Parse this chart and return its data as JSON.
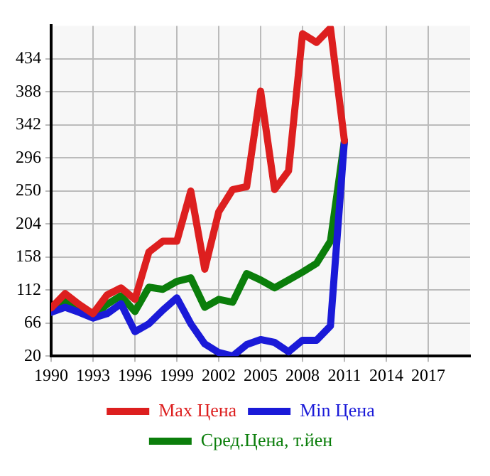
{
  "chart_data": {
    "type": "line",
    "x": [
      1990,
      1991,
      1992,
      1993,
      1994,
      1995,
      1996,
      1997,
      1998,
      1999,
      2000,
      2001,
      2002,
      2003,
      2004,
      2005,
      2006,
      2007,
      2008,
      2009,
      2010,
      2011
    ],
    "series": [
      {
        "name": "Max Цена",
        "color": "#dd1f1f",
        "values": [
          87,
          107,
          92,
          79,
          105,
          115,
          99,
          165,
          180,
          180,
          250,
          141,
          221,
          252,
          256,
          389,
          252,
          278,
          469,
          457,
          477,
          320
        ]
      },
      {
        "name": "Min Цена",
        "color": "#1a1ad8",
        "values": [
          81,
          88,
          81,
          73,
          79,
          93,
          54,
          65,
          84,
          101,
          65,
          37,
          25,
          20,
          36,
          43,
          39,
          26,
          42,
          42,
          62,
          320
        ]
      },
      {
        "name": "Сред.Цена, т.йен",
        "color": "#0b7e0b",
        "values": [
          81,
          96,
          87,
          74,
          92,
          104,
          82,
          116,
          113,
          124,
          129,
          88,
          99,
          95,
          135,
          126,
          115,
          126,
          137,
          149,
          180,
          320
        ]
      }
    ],
    "xlim": [
      1990,
      2020
    ],
    "xticks": [
      1990,
      1993,
      1996,
      1999,
      2002,
      2005,
      2008,
      2011,
      2014,
      2017
    ],
    "ylim": [
      20,
      480
    ],
    "yticks": [
      20,
      66,
      112,
      158,
      204,
      250,
      296,
      342,
      388,
      434
    ],
    "grid": true,
    "legend": "bottom",
    "marker": "none",
    "line_style": "solid"
  }
}
